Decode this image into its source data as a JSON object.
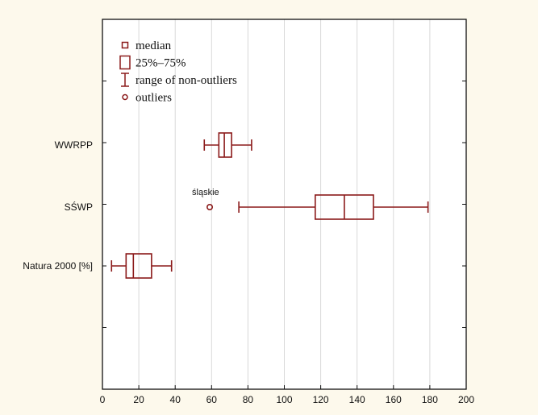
{
  "chart_data": {
    "type": "boxplot",
    "orientation": "horizontal",
    "xlim": [
      0,
      200
    ],
    "x_ticks": [
      "0",
      "20",
      "40",
      "60",
      "80",
      "100",
      "120",
      "140",
      "160",
      "180",
      "200"
    ],
    "grid": "vertical",
    "categories": [
      "WWRPP",
      "SŚWP",
      "Natura 2000 [%]"
    ],
    "boxes": [
      {
        "name": "WWRPP",
        "whisker_low": 56,
        "q1": 64,
        "median": 67,
        "q3": 71,
        "whisker_high": 82,
        "outliers": []
      },
      {
        "name": "SŚWP",
        "whisker_low": 75,
        "q1": 117,
        "median": 133,
        "q3": 149,
        "whisker_high": 179,
        "outliers": [
          {
            "value": 59,
            "label": "śląskie"
          }
        ]
      },
      {
        "name": "Natura 2000 [%]",
        "whisker_low": 5,
        "q1": 13,
        "median": 17,
        "q3": 27,
        "whisker_high": 38,
        "outliers": []
      }
    ],
    "legend": {
      "position": "top-left",
      "items": [
        {
          "symbol": "small-square",
          "label": "median"
        },
        {
          "symbol": "box",
          "label": "25%–75%"
        },
        {
          "symbol": "whisker",
          "label": "range of non-outliers"
        },
        {
          "symbol": "circle",
          "label": "outliers"
        }
      ]
    },
    "colors": {
      "marks": "#8b1a1a",
      "grid": "#d9d9d9",
      "frame": "#111111",
      "background": "#fdf9ec",
      "plot_bg": "#ffffff"
    }
  }
}
